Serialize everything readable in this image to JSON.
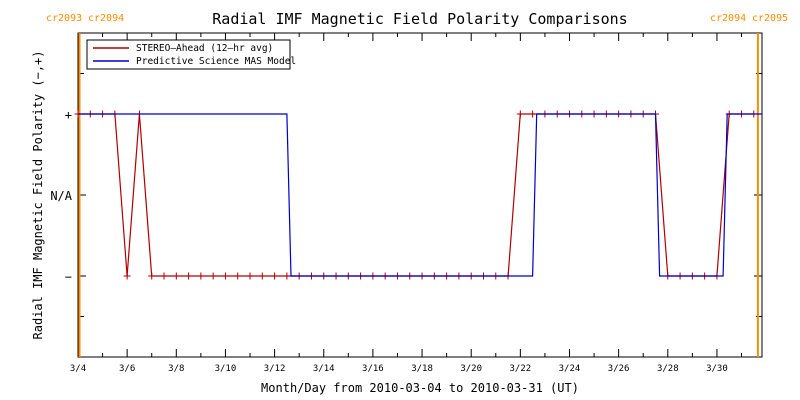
{
  "chart_data": {
    "type": "line",
    "title": "Radial IMF Magnetic Field Polarity Comparisons",
    "xlabel": "Month/Day from 2010-03-04 to 2010-03-31 (UT)",
    "ylabel": "Radial IMF Magnetic Field Polarity (−,+)",
    "xlim": [
      "2010-03-04",
      "2010-03-31T20:00"
    ],
    "ylim": [
      -2,
      2
    ],
    "x_ticks": [
      "3/4",
      "3/6",
      "3/8",
      "3/10",
      "3/12",
      "3/14",
      "3/16",
      "3/18",
      "3/20",
      "3/22",
      "3/24",
      "3/26",
      "3/28",
      "3/30"
    ],
    "y_ticks": [
      {
        "value": 1,
        "label": "+"
      },
      {
        "value": 0,
        "label": "N/A"
      },
      {
        "value": -1,
        "label": "−"
      }
    ],
    "legend_position": "top-left",
    "grid": false,
    "carrington_markers": [
      {
        "date": "2010-03-04T00:00",
        "left_label": "cr2093",
        "right_label": "cr2094",
        "position": "top-left"
      },
      {
        "date": "2010-03-31T16:00",
        "left_label": "cr2094",
        "right_label": "cr2095",
        "position": "top-right"
      }
    ],
    "series": [
      {
        "name": "STEREO–Ahead (12–hr avg)",
        "color": "#b00000",
        "marker": "plus",
        "x": [
          "2010-03-04T00:00",
          "2010-03-04T12:00",
          "2010-03-05T00:00",
          "2010-03-05T12:00",
          "2010-03-06T00:00",
          "2010-03-06T12:00",
          "2010-03-07T00:00",
          "2010-03-07T12:00",
          "2010-03-08T00:00",
          "2010-03-08T12:00",
          "2010-03-09T00:00",
          "2010-03-09T12:00",
          "2010-03-10T00:00",
          "2010-03-10T12:00",
          "2010-03-11T00:00",
          "2010-03-11T12:00",
          "2010-03-12T00:00",
          "2010-03-12T12:00",
          "2010-03-13T00:00",
          "2010-03-13T12:00",
          "2010-03-14T00:00",
          "2010-03-14T12:00",
          "2010-03-15T00:00",
          "2010-03-15T12:00",
          "2010-03-16T00:00",
          "2010-03-16T12:00",
          "2010-03-17T00:00",
          "2010-03-17T12:00",
          "2010-03-18T00:00",
          "2010-03-18T12:00",
          "2010-03-19T00:00",
          "2010-03-19T12:00",
          "2010-03-20T00:00",
          "2010-03-20T12:00",
          "2010-03-21T00:00",
          "2010-03-21T12:00",
          "2010-03-22T00:00",
          "2010-03-22T12:00",
          "2010-03-23T00:00",
          "2010-03-23T12:00",
          "2010-03-24T00:00",
          "2010-03-24T12:00",
          "2010-03-25T00:00",
          "2010-03-25T12:00",
          "2010-03-26T00:00",
          "2010-03-26T12:00",
          "2010-03-27T00:00",
          "2010-03-27T12:00",
          "2010-03-28T00:00",
          "2010-03-28T12:00",
          "2010-03-29T00:00",
          "2010-03-29T12:00",
          "2010-03-30T00:00",
          "2010-03-30T12:00",
          "2010-03-31T00:00",
          "2010-03-31T12:00"
        ],
        "y": [
          1,
          1,
          1,
          1,
          -1,
          1,
          -1,
          -1,
          -1,
          -1,
          -1,
          -1,
          -1,
          -1,
          -1,
          -1,
          -1,
          -1,
          -1,
          -1,
          -1,
          -1,
          -1,
          -1,
          -1,
          -1,
          -1,
          -1,
          -1,
          -1,
          -1,
          -1,
          -1,
          -1,
          -1,
          -1,
          1,
          1,
          1,
          1,
          1,
          1,
          1,
          1,
          1,
          1,
          1,
          1,
          -1,
          -1,
          -1,
          -1,
          -1,
          1,
          1,
          1
        ]
      },
      {
        "name": "Predictive Science MAS Model",
        "color": "#0000c8",
        "marker": "none",
        "step": true,
        "x": [
          "2010-03-04T00:00",
          "2010-03-12T12:00",
          "2010-03-12T16:00",
          "2010-03-22T12:00",
          "2010-03-22T16:00",
          "2010-03-27T12:00",
          "2010-03-27T16:00",
          "2010-03-30T06:00",
          "2010-03-30T10:00",
          "2010-03-31T20:00"
        ],
        "y": [
          1,
          1,
          -1,
          -1,
          1,
          1,
          -1,
          -1,
          1,
          1
        ]
      }
    ]
  }
}
